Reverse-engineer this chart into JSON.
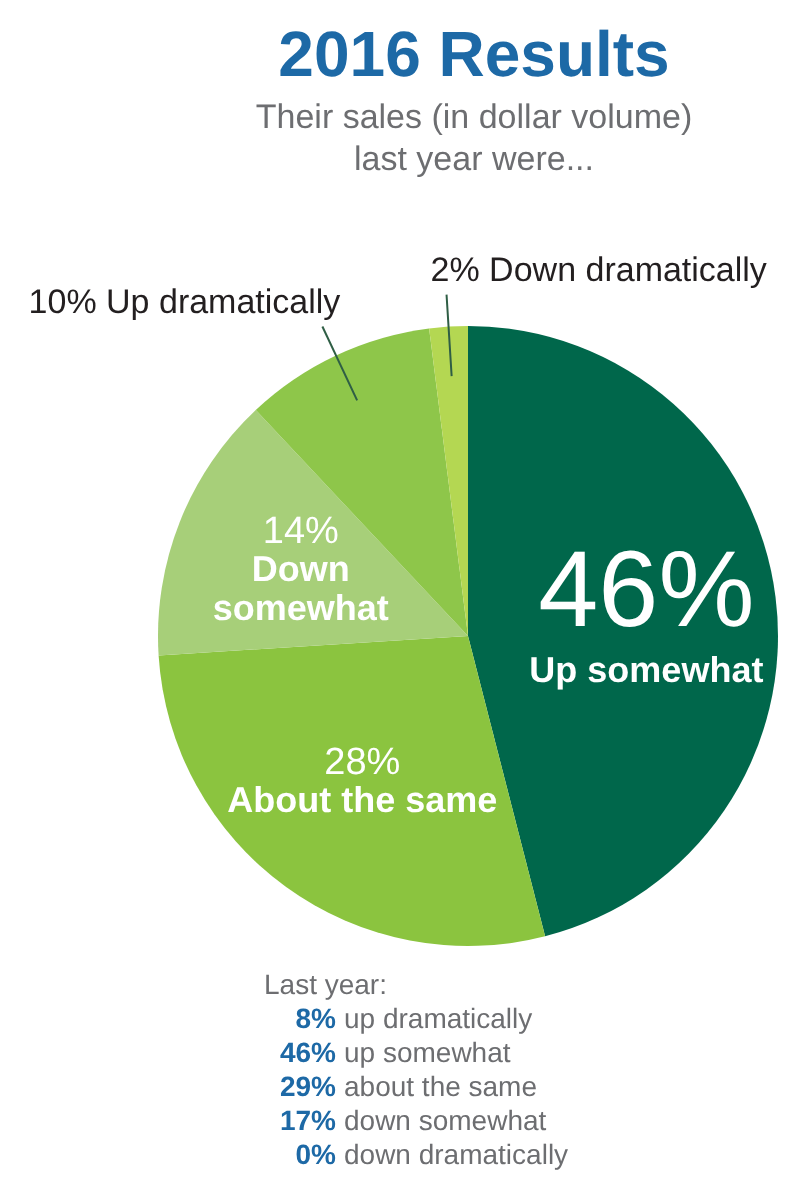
{
  "chart_data": {
    "type": "pie",
    "title": "2016 Results",
    "subtitle": "Their sales (in dollar volume) last year were...",
    "categories": [
      "Up somewhat",
      "About the same",
      "Down somewhat",
      "Up dramatically",
      "Down dramatically"
    ],
    "values": [
      46,
      28,
      14,
      10,
      2
    ],
    "value_labels": [
      "46%",
      "28%",
      "14%",
      "10%",
      "2%"
    ],
    "colors": [
      "#00674b",
      "#8bc43f",
      "#a7cf79",
      "#8ec64a",
      "#b4d752"
    ],
    "annotations": [
      "Last year:",
      "8% up dramatically",
      "46% up somewhat",
      "29% about the same",
      "17% down somewhat",
      "0% down dramatically"
    ]
  }
}
